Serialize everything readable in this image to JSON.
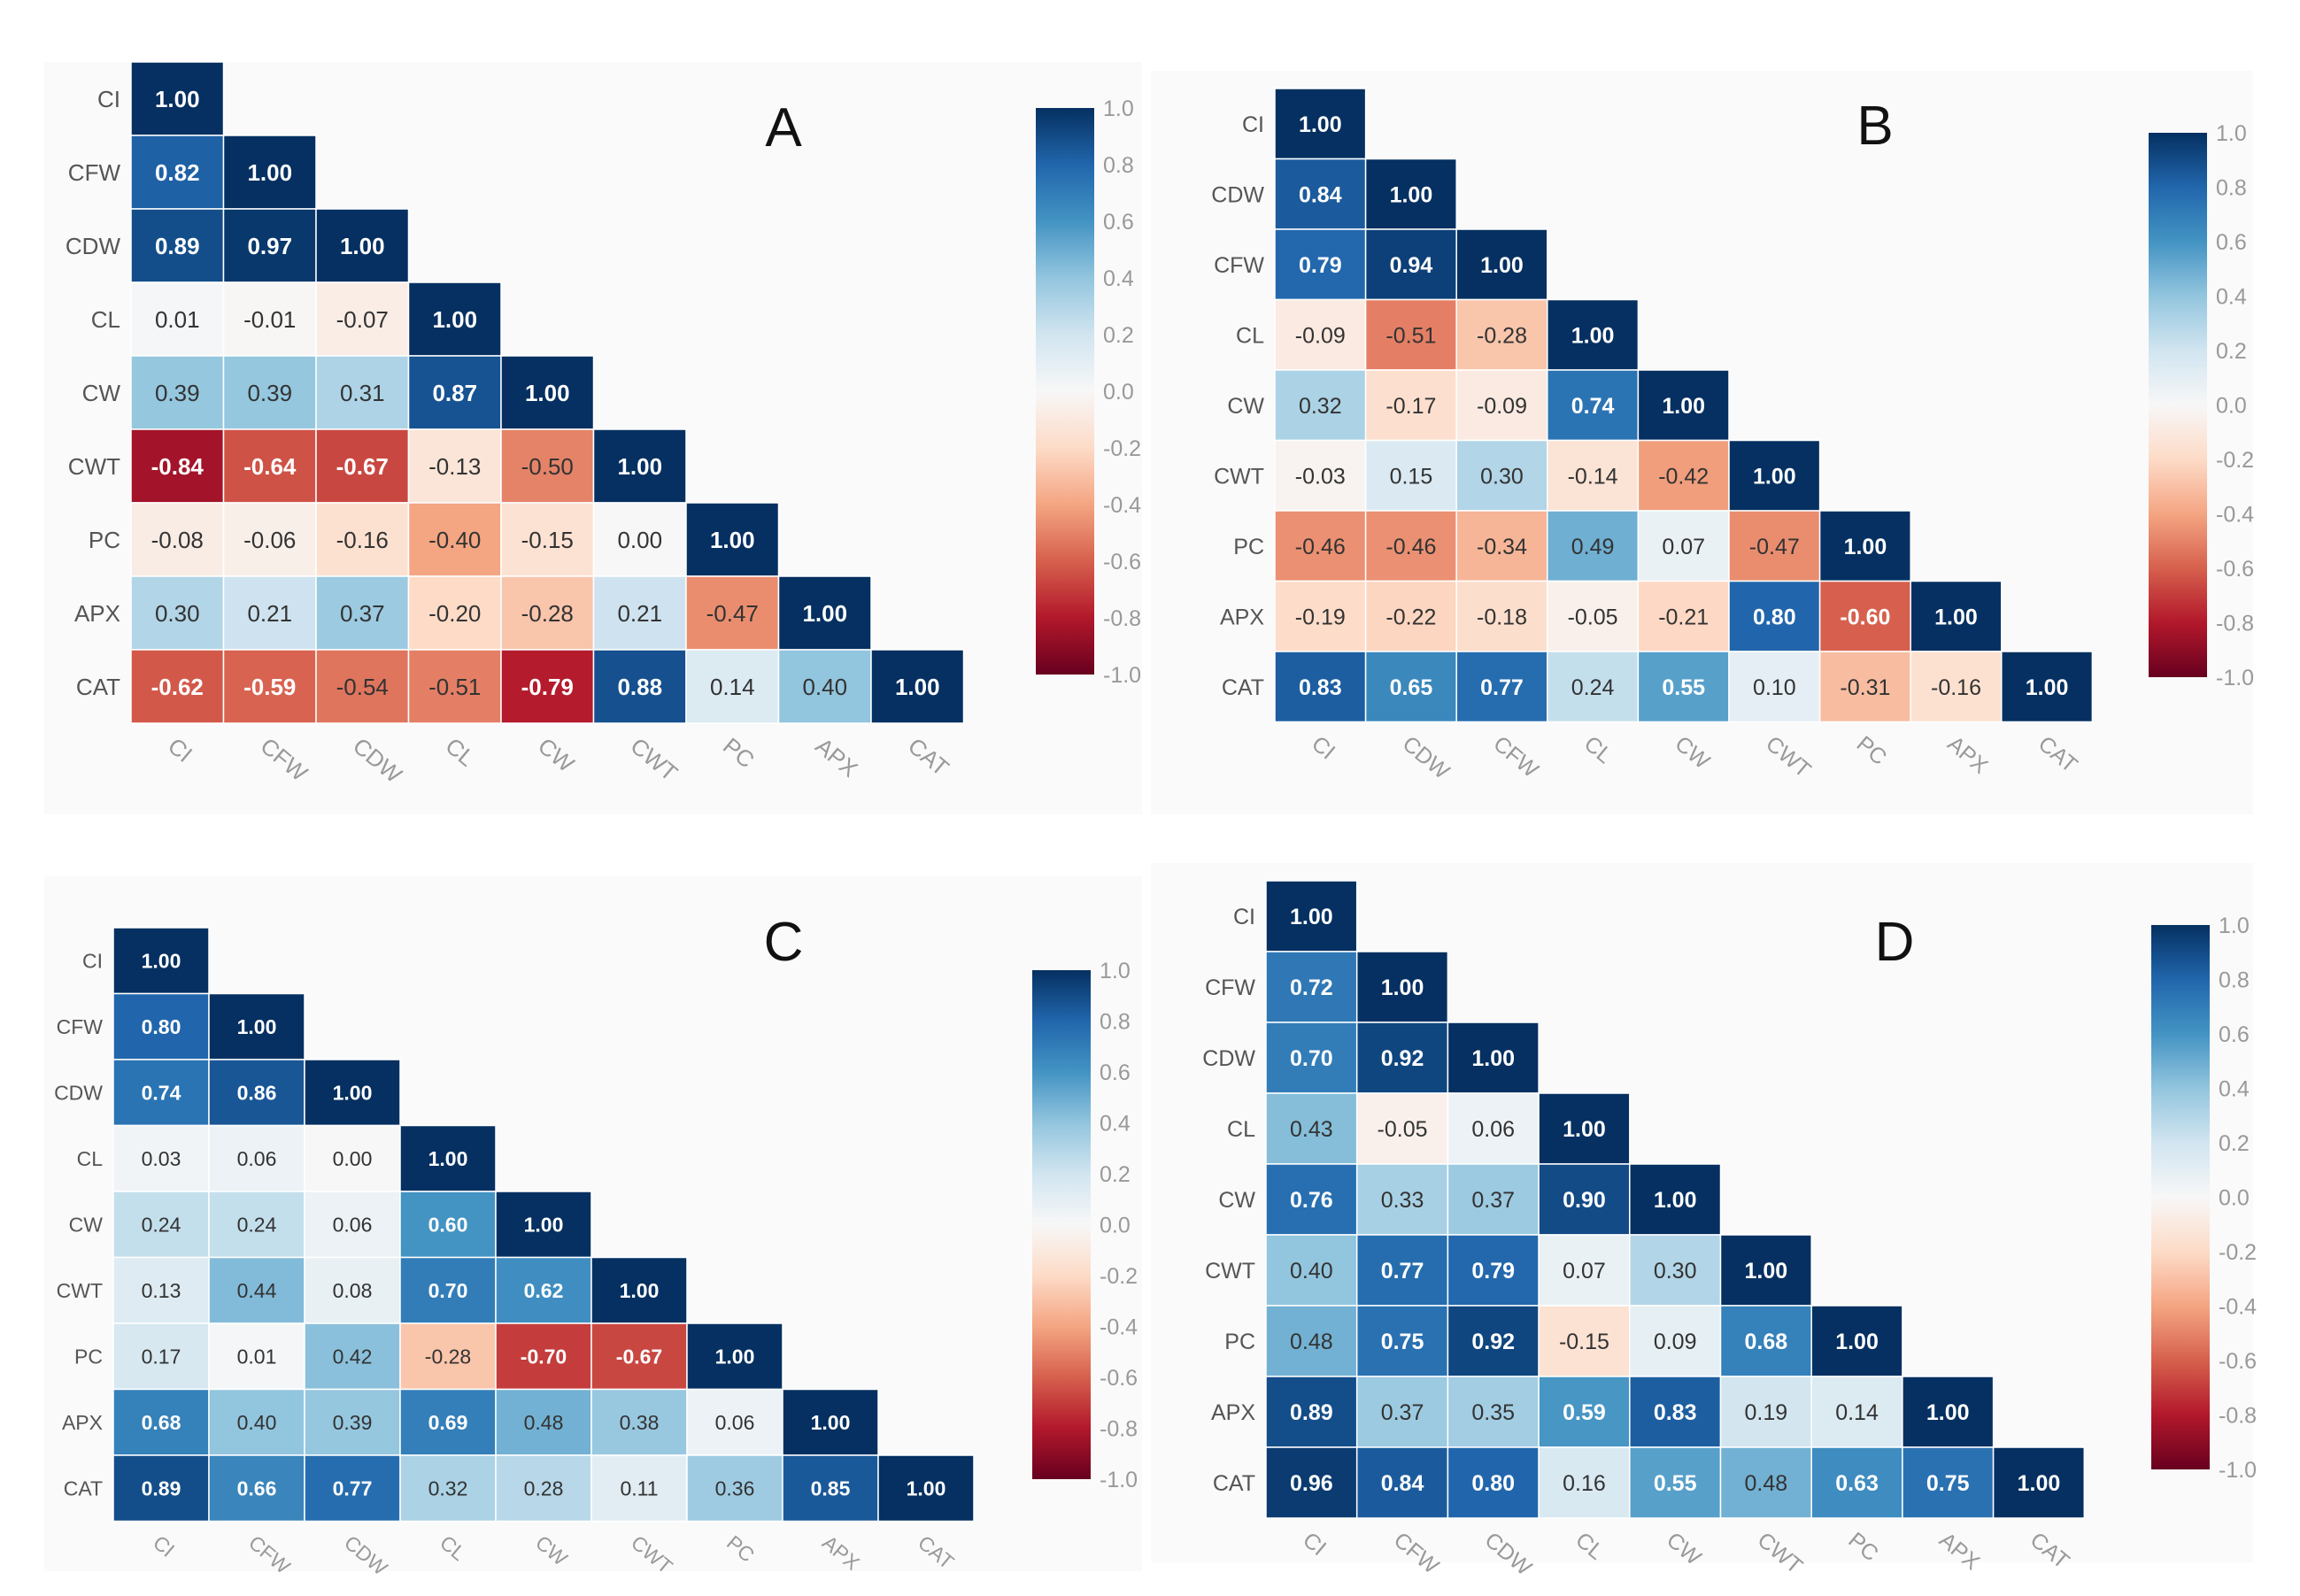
{
  "chart_data": [
    {
      "type": "heatmap",
      "panel_label": "A",
      "variables": [
        "CI",
        "CFW",
        "CDW",
        "CL",
        "CW",
        "CWT",
        "PC",
        "APX",
        "CAT"
      ],
      "matrix": [
        [
          1.0
        ],
        [
          0.82,
          1.0
        ],
        [
          0.89,
          0.97,
          1.0
        ],
        [
          0.01,
          -0.01,
          -0.07,
          1.0
        ],
        [
          0.39,
          0.39,
          0.31,
          0.87,
          1.0
        ],
        [
          -0.84,
          -0.64,
          -0.67,
          -0.13,
          -0.5,
          1.0
        ],
        [
          -0.08,
          -0.06,
          -0.16,
          -0.4,
          -0.15,
          0.0,
          1.0
        ],
        [
          0.3,
          0.21,
          0.37,
          -0.2,
          -0.28,
          0.21,
          -0.47,
          1.0
        ],
        [
          -0.62,
          -0.59,
          -0.54,
          -0.51,
          -0.79,
          0.88,
          0.14,
          0.4,
          1.0
        ]
      ],
      "colorbar": {
        "range": [
          -1.0,
          1.0
        ],
        "ticks": [
          "1.0",
          "0.8",
          "0.6",
          "0.4",
          "0.2",
          "0.0",
          "-0.2",
          "-0.4",
          "-0.6",
          "-0.8",
          "-1.0"
        ]
      }
    },
    {
      "type": "heatmap",
      "panel_label": "B",
      "variables": [
        "CI",
        "CDW",
        "CFW",
        "CL",
        "CW",
        "CWT",
        "PC",
        "APX",
        "CAT"
      ],
      "matrix": [
        [
          1.0
        ],
        [
          0.84,
          1.0
        ],
        [
          0.79,
          0.94,
          1.0
        ],
        [
          -0.09,
          -0.51,
          -0.28,
          1.0
        ],
        [
          0.32,
          -0.17,
          -0.09,
          0.74,
          1.0
        ],
        [
          -0.03,
          0.15,
          0.3,
          -0.14,
          -0.42,
          1.0
        ],
        [
          -0.46,
          -0.46,
          -0.34,
          0.49,
          0.07,
          -0.47,
          1.0
        ],
        [
          -0.19,
          -0.22,
          -0.18,
          -0.05,
          -0.21,
          0.8,
          -0.6,
          1.0
        ],
        [
          0.83,
          0.65,
          0.77,
          0.24,
          0.55,
          0.1,
          -0.31,
          -0.16,
          1.0
        ]
      ],
      "colorbar": {
        "range": [
          -1.0,
          1.0
        ],
        "ticks": [
          "1.0",
          "0.8",
          "0.6",
          "0.4",
          "0.2",
          "0.0",
          "-0.2",
          "-0.4",
          "-0.6",
          "-0.8",
          "-1.0"
        ]
      }
    },
    {
      "type": "heatmap",
      "panel_label": "C",
      "variables": [
        "CI",
        "CFW",
        "CDW",
        "CL",
        "CW",
        "CWT",
        "PC",
        "APX",
        "CAT"
      ],
      "matrix": [
        [
          1.0
        ],
        [
          0.8,
          1.0
        ],
        [
          0.74,
          0.86,
          1.0
        ],
        [
          0.03,
          0.06,
          0.0,
          1.0
        ],
        [
          0.24,
          0.24,
          0.06,
          0.6,
          1.0
        ],
        [
          0.13,
          0.44,
          0.08,
          0.7,
          0.62,
          1.0
        ],
        [
          0.17,
          0.01,
          0.42,
          -0.28,
          -0.7,
          -0.67,
          1.0
        ],
        [
          0.68,
          0.4,
          0.39,
          0.69,
          0.48,
          0.38,
          0.06,
          1.0
        ],
        [
          0.89,
          0.66,
          0.77,
          0.32,
          0.28,
          0.11,
          0.36,
          0.85,
          1.0
        ]
      ],
      "colorbar": {
        "range": [
          -1.0,
          1.0
        ],
        "ticks": [
          "1.0",
          "0.8",
          "0.6",
          "0.4",
          "0.2",
          "0.0",
          "-0.2",
          "-0.4",
          "-0.6",
          "-0.8",
          "-1.0"
        ]
      }
    },
    {
      "type": "heatmap",
      "panel_label": "D",
      "variables": [
        "CI",
        "CFW",
        "CDW",
        "CL",
        "CW",
        "CWT",
        "PC",
        "APX",
        "CAT"
      ],
      "matrix": [
        [
          1.0
        ],
        [
          0.72,
          1.0
        ],
        [
          0.7,
          0.92,
          1.0
        ],
        [
          0.43,
          -0.05,
          0.06,
          1.0
        ],
        [
          0.76,
          0.33,
          0.37,
          0.9,
          1.0
        ],
        [
          0.4,
          0.77,
          0.79,
          0.07,
          0.3,
          1.0
        ],
        [
          0.48,
          0.75,
          0.92,
          -0.15,
          0.09,
          0.68,
          1.0
        ],
        [
          0.89,
          0.37,
          0.35,
          0.59,
          0.83,
          0.19,
          0.14,
          1.0
        ],
        [
          0.96,
          0.84,
          0.8,
          0.16,
          0.55,
          0.48,
          0.63,
          0.75,
          1.0
        ]
      ],
      "colorbar": {
        "range": [
          -1.0,
          1.0
        ],
        "ticks": [
          "1.0",
          "0.8",
          "0.6",
          "0.4",
          "0.2",
          "0.0",
          "-0.2",
          "-0.4",
          "-0.6",
          "-0.8",
          "-1.0"
        ]
      }
    }
  ],
  "colors": {
    "scale": [
      "#67001f",
      "#b2182b",
      "#d6604d",
      "#f4a582",
      "#fddbc7",
      "#f7f7f7",
      "#d1e5f0",
      "#92c5de",
      "#4393c3",
      "#2166ac",
      "#053061"
    ],
    "panel_background": "#fafafa",
    "label_text": "#555555",
    "axis_text": "#999999"
  }
}
